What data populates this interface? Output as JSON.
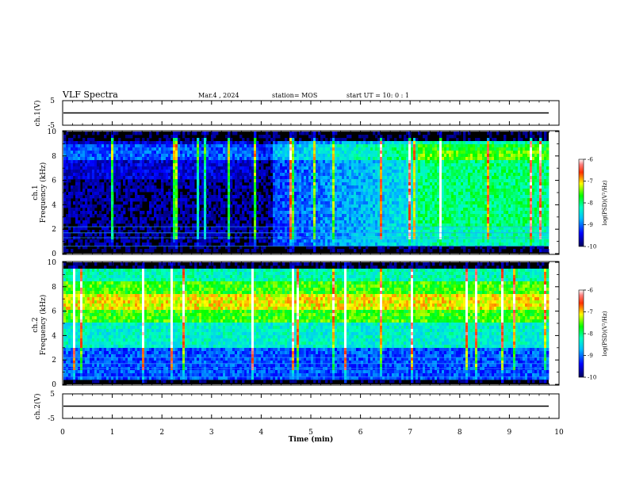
{
  "header": {
    "title": "VLF Spectra",
    "date": "Mar.4 , 2024",
    "station": "station= MOS",
    "start_ut": "start UT = 10: 0 : 1"
  },
  "chart_data": [
    {
      "type": "line",
      "name": "ch1-waveform",
      "ylabel": "ch.1(V)",
      "ylim": [
        -5,
        5
      ],
      "y_ticks": [
        "5",
        "-5"
      ],
      "x": [
        0,
        10
      ],
      "values": [
        0,
        0
      ]
    },
    {
      "type": "heatmap",
      "name": "ch1-spectrogram",
      "ylabel": [
        "ch.1",
        "Frequency (kHz)"
      ],
      "ylim": [
        0,
        10
      ],
      "y_ticks": [
        "0",
        "2",
        "4",
        "6",
        "8",
        "10"
      ],
      "colorbar": {
        "label": "log(PSD)(V²/Hz)",
        "range": [
          -10,
          -6
        ],
        "ticks": [
          "-6",
          "-7",
          "-8",
          "-9",
          "-10"
        ]
      }
    },
    {
      "type": "heatmap",
      "name": "ch2-spectrogram",
      "ylabel": [
        "ch.2",
        "Frequency (kHz)"
      ],
      "ylim": [
        0,
        10
      ],
      "y_ticks": [
        "0",
        "2",
        "4",
        "6",
        "8",
        "10"
      ],
      "colorbar": {
        "label": "log(PSD)(V²/Hz)",
        "range": [
          -10,
          -6
        ],
        "ticks": [
          "-6",
          "-7",
          "-8",
          "-9",
          "-10"
        ]
      }
    },
    {
      "type": "line",
      "name": "ch2-waveform",
      "ylabel": "ch.2(V)",
      "ylim": [
        -5,
        5
      ],
      "y_ticks": [
        "5",
        "-5"
      ],
      "x": [
        0,
        10
      ],
      "values": [
        0,
        0
      ]
    }
  ],
  "xaxis": {
    "label": "Time (min)",
    "ticks": [
      "0",
      "1",
      "2",
      "3",
      "4",
      "5",
      "6",
      "7",
      "8",
      "9",
      "10"
    ],
    "range": [
      0,
      10
    ]
  }
}
